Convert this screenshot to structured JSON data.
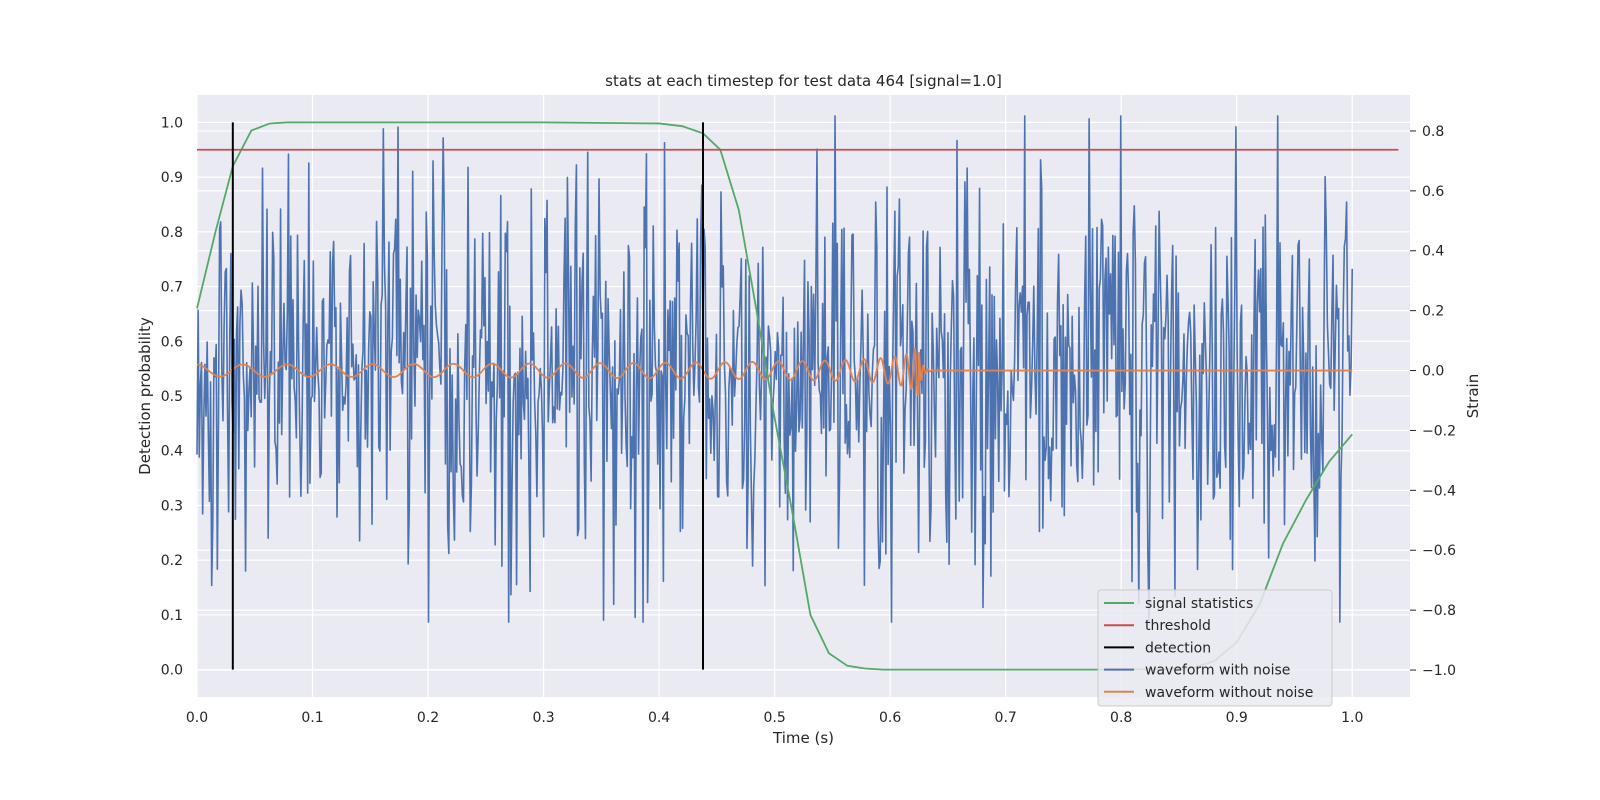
{
  "chart_data": {
    "type": "line",
    "title": "stats at each timestep for test data 464 [signal=1.0]",
    "xlabel": "Time (s)",
    "ylabel": "Detection probability",
    "y2label": "Strain",
    "xlim": [
      0.0,
      1.05
    ],
    "ylim": [
      -0.05,
      1.05
    ],
    "y2lim": [
      -1.09,
      0.92
    ],
    "xticks": [
      0.0,
      0.1,
      0.2,
      0.3,
      0.4,
      0.5,
      0.6,
      0.7,
      0.8,
      0.9,
      1.0
    ],
    "xtick_labels": [
      "0.0",
      "0.1",
      "0.2",
      "0.3",
      "0.4",
      "0.5",
      "0.6",
      "0.7",
      "0.8",
      "0.9",
      "1.0"
    ],
    "yticks": [
      0.0,
      0.1,
      0.2,
      0.3,
      0.4,
      0.5,
      0.6,
      0.7,
      0.8,
      0.9,
      1.0
    ],
    "ytick_labels": [
      "0.0",
      "0.1",
      "0.2",
      "0.3",
      "0.4",
      "0.5",
      "0.6",
      "0.7",
      "0.8",
      "0.9",
      "1.0"
    ],
    "y2ticks": [
      -1.0,
      -0.8,
      -0.6,
      -0.4,
      -0.2,
      0.0,
      0.2,
      0.4,
      0.6,
      0.8
    ],
    "y2tick_labels": [
      "−1.0",
      "−0.8",
      "−0.6",
      "−0.4",
      "−0.2",
      "0.0",
      "0.2",
      "0.4",
      "0.6",
      "0.8"
    ],
    "grid": true,
    "legend_position": "bottom-right",
    "colors": {
      "background": "#eaeaf2",
      "grid": "#ffffff",
      "signal_statistics": "#55a868",
      "threshold": "#c44e52",
      "detection": "#000000",
      "waveform_with_noise": "#4c72b0",
      "waveform_without_noise": "#dd8452"
    },
    "legend": [
      {
        "key": "signal_statistics",
        "label": "signal statistics"
      },
      {
        "key": "threshold",
        "label": "threshold"
      },
      {
        "key": "detection",
        "label": "detection"
      },
      {
        "key": "waveform_with_noise",
        "label": "waveform with noise"
      },
      {
        "key": "waveform_without_noise",
        "label": "waveform without noise"
      }
    ],
    "series": [
      {
        "name": "signal statistics",
        "axis": "left",
        "x": [
          0.0,
          0.016,
          0.031,
          0.047,
          0.063,
          0.078,
          0.094,
          0.11,
          0.2,
          0.3,
          0.4,
          0.42,
          0.438,
          0.453,
          0.469,
          0.484,
          0.5,
          0.516,
          0.531,
          0.547,
          0.563,
          0.578,
          0.594,
          0.61,
          0.7,
          0.8,
          0.86,
          0.88,
          0.9,
          0.92,
          0.94,
          0.96,
          0.98,
          1.0
        ],
        "y": [
          0.66,
          0.8,
          0.92,
          0.985,
          0.998,
          1.0,
          1.0,
          1.0,
          1.0,
          1.0,
          0.998,
          0.993,
          0.98,
          0.95,
          0.84,
          0.66,
          0.46,
          0.28,
          0.1,
          0.03,
          0.007,
          0.002,
          0.0,
          0.0,
          0.0,
          0.0,
          0.002,
          0.015,
          0.05,
          0.12,
          0.23,
          0.31,
          0.38,
          0.43
        ]
      },
      {
        "name": "threshold",
        "axis": "left",
        "x": [
          0.0,
          1.04
        ],
        "y": [
          0.95,
          0.95
        ]
      }
    ],
    "detections": [
      {
        "x": 0.031,
        "y_from": 0.0,
        "y_to": 1.0
      },
      {
        "x": 0.438,
        "y_from": 0.0,
        "y_to": 1.0
      }
    ],
    "waveform_with_noise": {
      "axis": "right",
      "x_start": 0.0,
      "x_end": 1.0,
      "samples": 1024,
      "mean": 0.0,
      "std": 0.32,
      "max": 0.85,
      "min": -0.84
    },
    "waveform_without_noise": {
      "axis": "right",
      "x_start": 0.0,
      "x_end": 1.0,
      "merger_time": 0.625,
      "amplitude_start": 0.02,
      "amplitude_peak": 0.12,
      "frequency_start_hz": 25,
      "after_merger_value": 0.0
    }
  }
}
